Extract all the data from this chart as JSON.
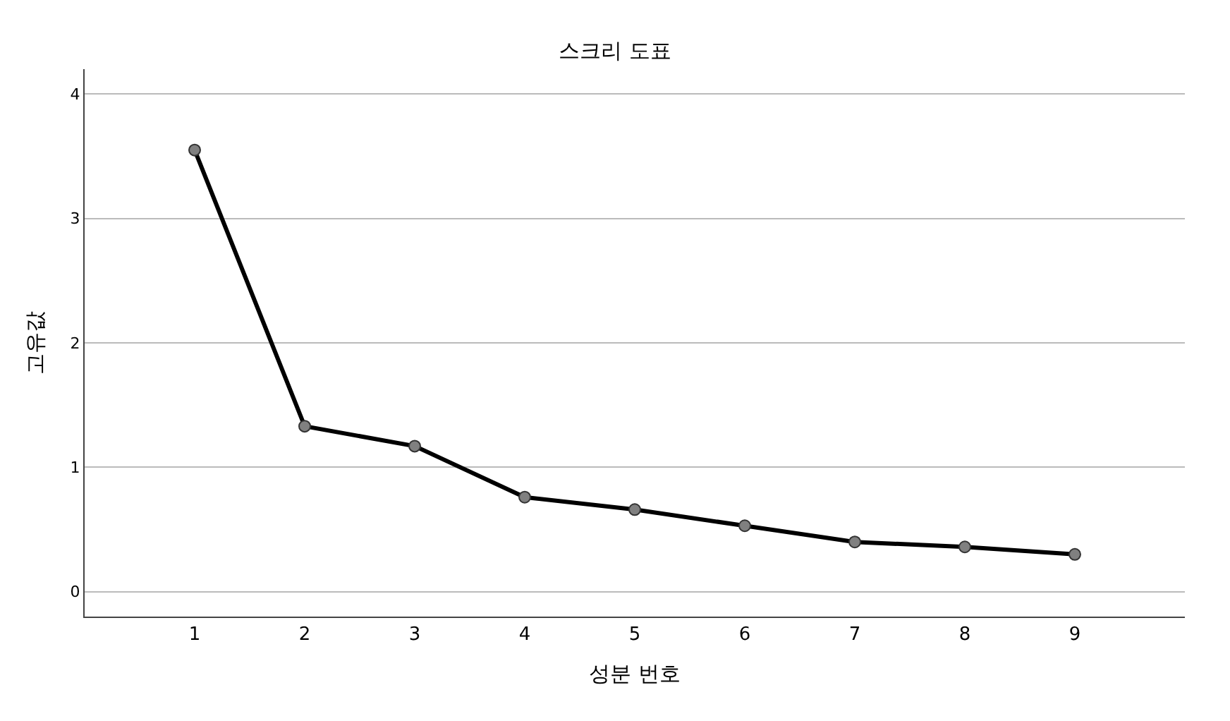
{
  "chart_data": {
    "type": "line",
    "title": "스크리 도표",
    "xlabel": "성분 번호",
    "ylabel": "고유값",
    "x": [
      1,
      2,
      3,
      4,
      5,
      6,
      7,
      8,
      9
    ],
    "series": [
      {
        "color": "#000000",
        "values": [
          3.55,
          1.33,
          1.17,
          0.76,
          0.66,
          0.53,
          0.4,
          0.36,
          0.3
        ]
      }
    ],
    "xlim": [
      0,
      10
    ],
    "xticks": [
      1,
      2,
      3,
      4,
      5,
      6,
      7,
      8,
      9
    ],
    "ylim": [
      -0.2,
      4.2
    ],
    "yticks": [
      0,
      1,
      2,
      3,
      4
    ],
    "grid": "y",
    "marker": "circle",
    "line_style": "solid"
  }
}
